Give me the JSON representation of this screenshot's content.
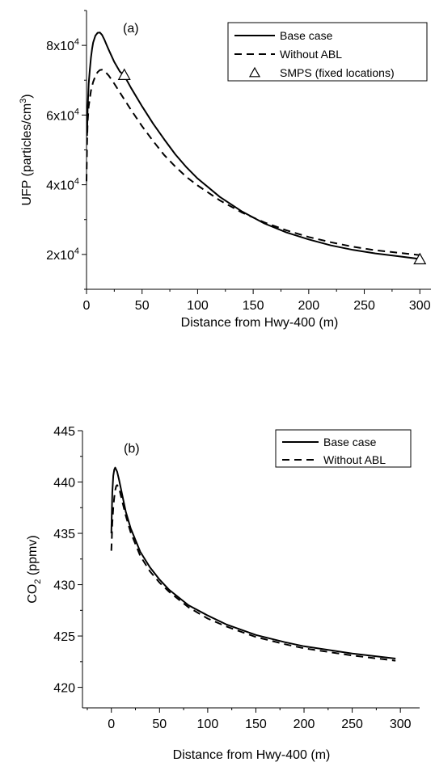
{
  "chart_data": [
    {
      "type": "line",
      "panel_label": "(a)",
      "xlabel": "Distance from Hwy-400 (m)",
      "ylabel": "UFP (particles/cm³)",
      "xlim": [
        0,
        310
      ],
      "ylim": [
        10000,
        90000
      ],
      "x_ticks": [
        0,
        50,
        100,
        150,
        200,
        250,
        300
      ],
      "x_tick_labels": [
        "0",
        "50",
        "100",
        "150",
        "200",
        "250",
        "300"
      ],
      "y_ticks": [
        20000,
        40000,
        60000,
        80000
      ],
      "y_tick_labels": [
        {
          "mantissa": "2x10",
          "exp": "4"
        },
        {
          "mantissa": "4x10",
          "exp": "4"
        },
        {
          "mantissa": "6x10",
          "exp": "4"
        },
        {
          "mantissa": "8x10",
          "exp": "4"
        }
      ],
      "grid": false,
      "legend_position": "top-right",
      "series": [
        {
          "name": "Base case",
          "style": "solid",
          "x": [
            0.5,
            1,
            2,
            3,
            4,
            5,
            6,
            8,
            10,
            12,
            14,
            16,
            18,
            20,
            25,
            30,
            34,
            40,
            50,
            60,
            70,
            80,
            90,
            100,
            120,
            140,
            160,
            180,
            200,
            220,
            240,
            260,
            280,
            300
          ],
          "y": [
            54000,
            62000,
            69000,
            73000,
            76500,
            79000,
            80800,
            82800,
            83600,
            83700,
            83000,
            81700,
            80200,
            78700,
            75200,
            72500,
            71300,
            67800,
            62500,
            57500,
            53000,
            48700,
            45000,
            41800,
            36500,
            32300,
            28900,
            26300,
            24300,
            22600,
            21300,
            20300,
            19500,
            18700
          ]
        },
        {
          "name": "Without ABL",
          "style": "dashed",
          "x": [
            0,
            0.5,
            1,
            2,
            4,
            6,
            8,
            10,
            12,
            14,
            16,
            20,
            25,
            30,
            34,
            40,
            50,
            60,
            70,
            80,
            90,
            100,
            120,
            140,
            160,
            180,
            200,
            220,
            240,
            260,
            280,
            300
          ],
          "y": [
            41000,
            52000,
            58000,
            62500,
            67000,
            69500,
            71200,
            72300,
            72900,
            73000,
            72700,
            71300,
            69000,
            66500,
            64500,
            61500,
            56800,
            52500,
            48500,
            45200,
            42200,
            39800,
            35500,
            32000,
            29200,
            26900,
            25000,
            23500,
            22200,
            21200,
            20500,
            19800
          ]
        },
        {
          "name": "SMPS (fixed locations)",
          "style": "markers",
          "marker": "triangle",
          "x": [
            34,
            300
          ],
          "y": [
            71500,
            18600
          ]
        }
      ]
    },
    {
      "type": "line",
      "panel_label": "(b)",
      "xlabel": "Distance from Hwy-400 (m)",
      "ylabel_main": "CO",
      "ylabel_sub": "2",
      "ylabel_rest": " (ppmv)",
      "xlim": [
        -30,
        320
      ],
      "ylim": [
        418,
        445
      ],
      "x_ticks": [
        0,
        50,
        100,
        150,
        200,
        250,
        300
      ],
      "x_tick_labels": [
        "0",
        "50",
        "100",
        "150",
        "200",
        "250",
        "300"
      ],
      "y_ticks": [
        420,
        425,
        430,
        435,
        440,
        445
      ],
      "y_tick_labels": [
        "420",
        "425",
        "430",
        "435",
        "440",
        "445"
      ],
      "grid": false,
      "legend_position": "top-right",
      "series": [
        {
          "name": "Base case",
          "style": "solid",
          "x": [
            0,
            0.5,
            1,
            2,
            3,
            4,
            6,
            8,
            10,
            15,
            20,
            30,
            40,
            50,
            60,
            80,
            100,
            120,
            150,
            180,
            200,
            250,
            295
          ],
          "y": [
            435,
            437,
            439,
            440.6,
            441.2,
            441.4,
            441,
            440.2,
            439.3,
            437.1,
            435.5,
            433.2,
            431.7,
            430.5,
            429.5,
            428,
            427,
            426.1,
            425.1,
            424.4,
            424,
            423.3,
            422.8
          ]
        },
        {
          "name": "Without ABL",
          "style": "dashed",
          "x": [
            0,
            0.5,
            1,
            2,
            3,
            4,
            5,
            6,
            8,
            10,
            15,
            20,
            30,
            40,
            50,
            60,
            80,
            100,
            120,
            150,
            180,
            200,
            250,
            295
          ],
          "y": [
            433.3,
            434.5,
            436,
            437.5,
            438.5,
            439.2,
            439.6,
            439.7,
            439.4,
            438.6,
            436.7,
            435.1,
            432.8,
            431.3,
            430.2,
            429.3,
            427.8,
            426.7,
            425.9,
            424.9,
            424.2,
            423.8,
            423.1,
            422.6
          ]
        }
      ]
    }
  ]
}
